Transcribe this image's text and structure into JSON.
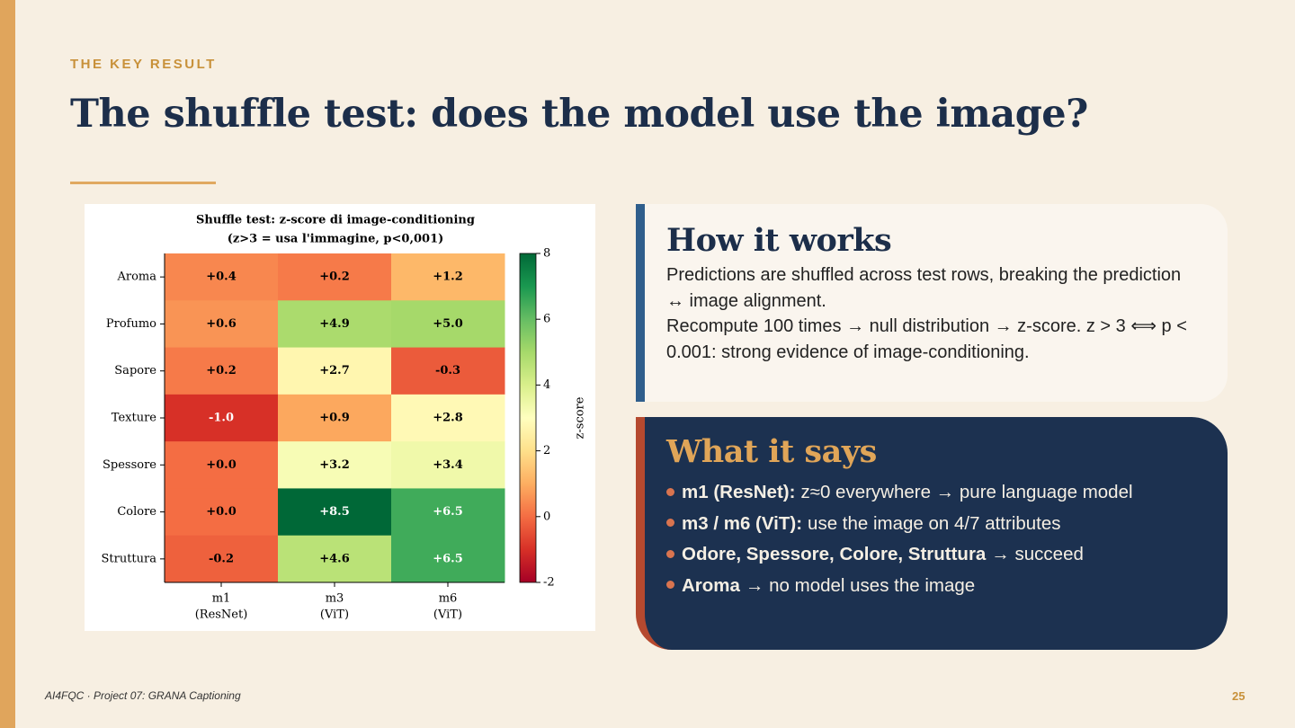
{
  "header": {
    "kicker": "THE KEY RESULT",
    "title": "The shuffle test: does the model use the image?"
  },
  "chart_data": {
    "type": "heatmap",
    "title": [
      "Shuffle test: z-score di image-conditioning",
      "(z>3 = usa l'immagine, p<0,001)"
    ],
    "rows": [
      "Aroma",
      "Profumo",
      "Sapore",
      "Texture",
      "Spessore",
      "Colore",
      "Struttura"
    ],
    "columns": [
      [
        "m1",
        "(ResNet)"
      ],
      [
        "m3",
        "(ViT)"
      ],
      [
        "m6",
        "(ViT)"
      ]
    ],
    "values": [
      [
        0.4,
        0.2,
        1.2
      ],
      [
        0.6,
        4.9,
        5.0
      ],
      [
        0.2,
        2.7,
        -0.3
      ],
      [
        -1.0,
        0.9,
        2.8
      ],
      [
        0.0,
        3.2,
        3.4
      ],
      [
        0.0,
        8.5,
        6.5
      ],
      [
        -0.2,
        4.6,
        6.5
      ]
    ],
    "value_labels": [
      [
        "+0.4",
        "+0.2",
        "+1.2"
      ],
      [
        "+0.6",
        "+4.9",
        "+5.0"
      ],
      [
        "+0.2",
        "+2.7",
        "-0.3"
      ],
      [
        "-1.0",
        "+0.9",
        "+2.8"
      ],
      [
        "+0.0",
        "+3.2",
        "+3.4"
      ],
      [
        "+0.0",
        "+8.5",
        "+6.5"
      ],
      [
        "-0.2",
        "+4.6",
        "+6.5"
      ]
    ],
    "colormap": "RdYlGn",
    "clim": [
      -2,
      8
    ],
    "cticks": [
      -2,
      0,
      2,
      4,
      6,
      8
    ],
    "colorbar_label": "z-score"
  },
  "cards": [
    {
      "heading": "How it works",
      "paragraphs": [
        "Predictions are shuffled across test rows, breaking the prediction ↔ image alignment.",
        "Recompute 100 times → null distribution → z-score. z > 3 ⟺ p < 0.001: strong evidence of image-conditioning."
      ]
    },
    {
      "heading": "What it says",
      "bullets": [
        {
          "bold": "m1 (ResNet):",
          "text": "z≈0 everywhere → pure language model"
        },
        {
          "bold": "m3 / m6 (ViT):",
          "text": "use the image on 4/7 attributes"
        },
        {
          "bold": "Odore, Spessore, Colore, Struttura",
          "text": "→ succeed"
        },
        {
          "bold": "Aroma",
          "text": "→ no model uses the image"
        }
      ]
    }
  ],
  "footer": {
    "left": "AI4FQC · Project 07: GRANA Captioning",
    "page": "25"
  }
}
